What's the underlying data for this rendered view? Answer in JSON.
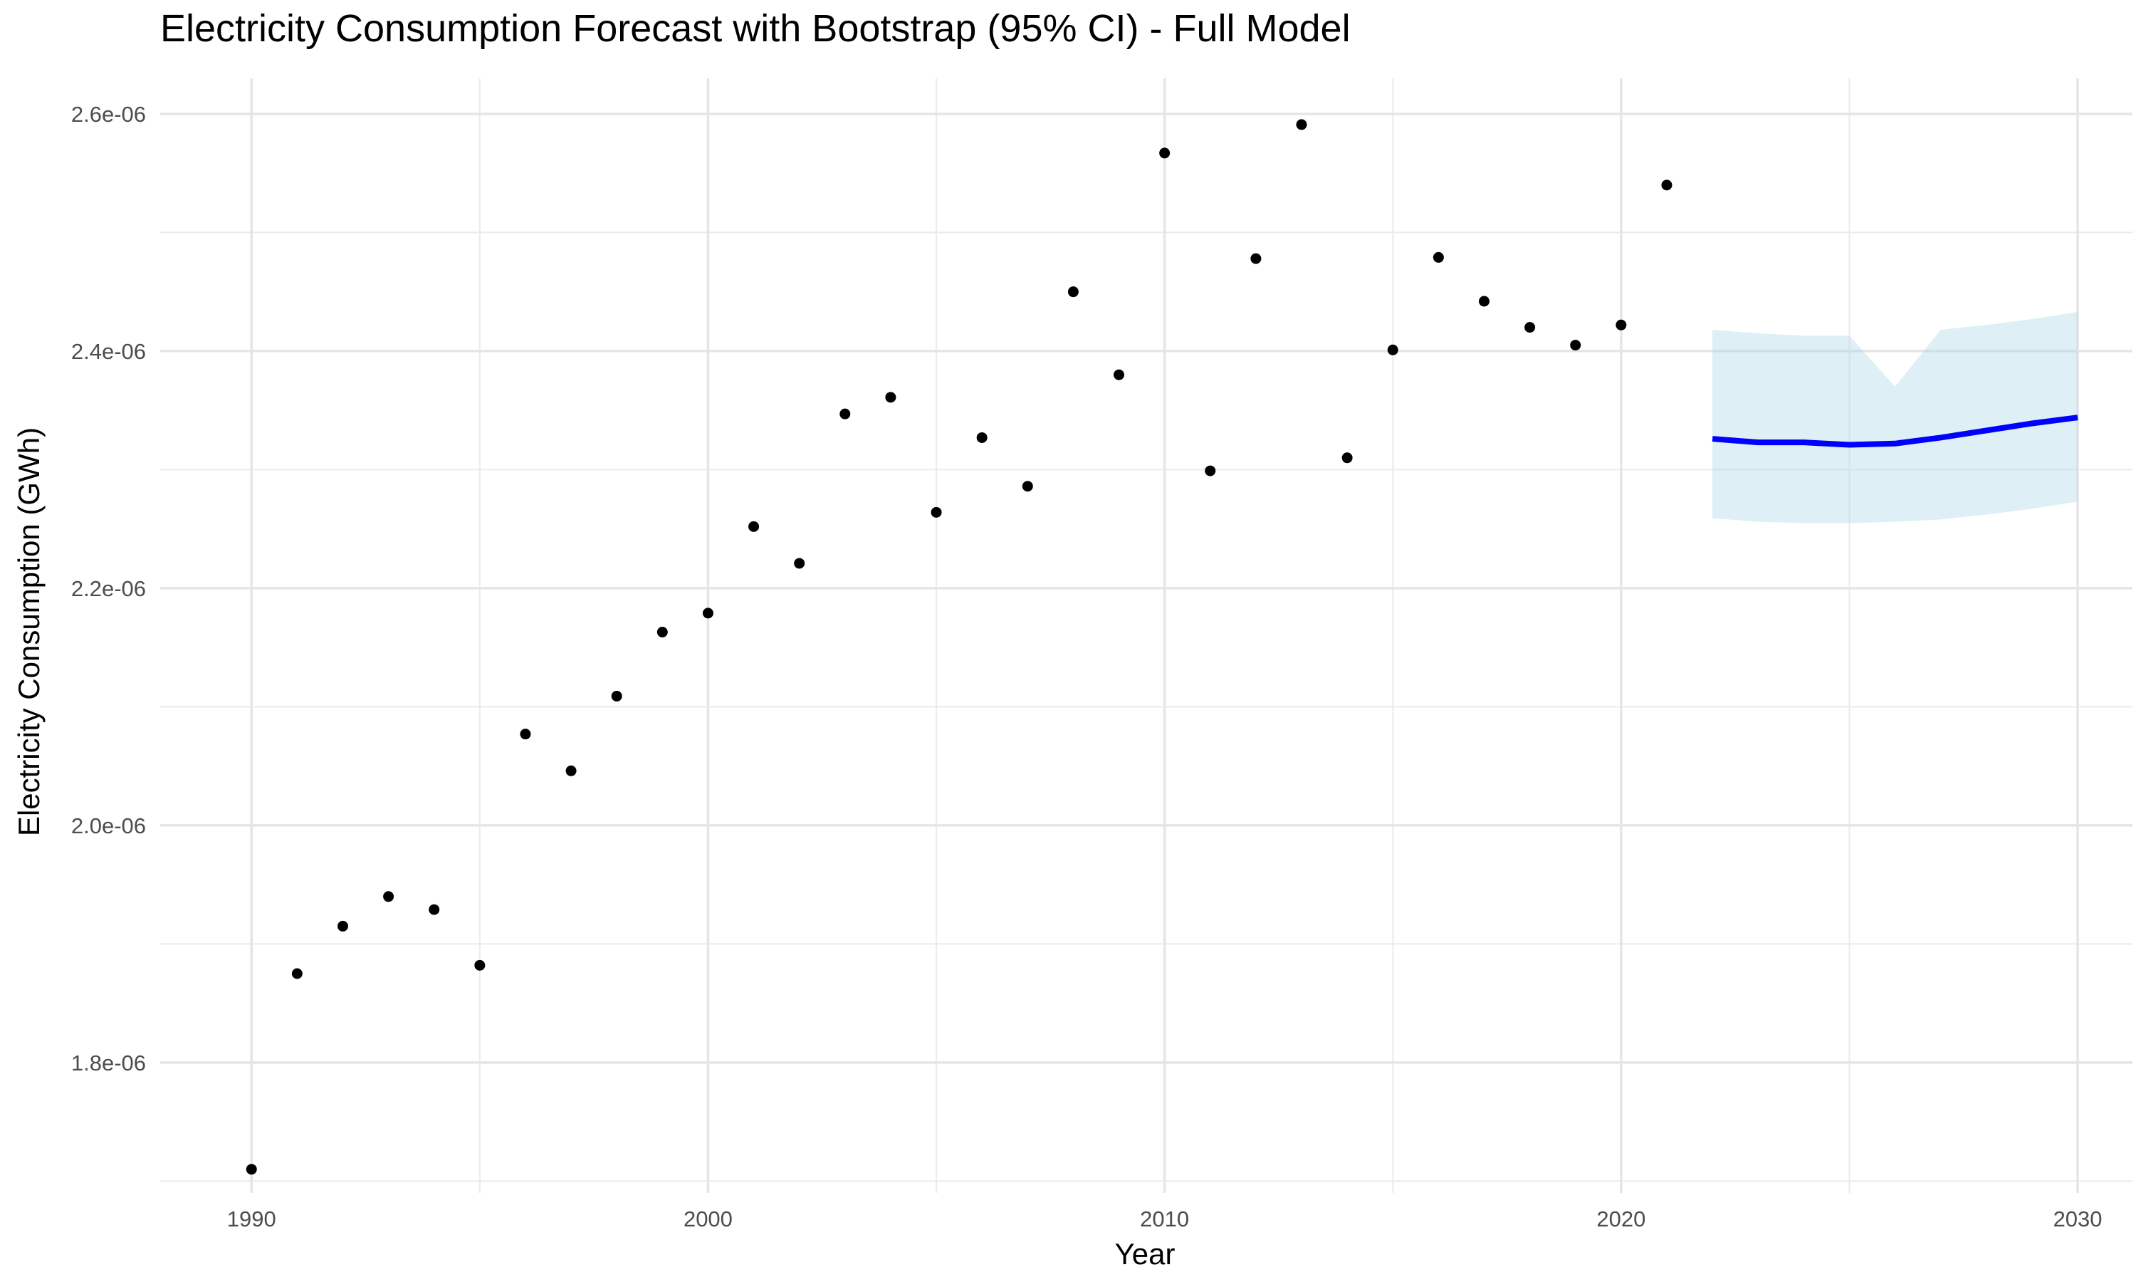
{
  "chart_data": {
    "type": "scatter",
    "title": "Electricity Consumption Forecast with Bootstrap (95% CI) - Full Model",
    "xlabel": "Year",
    "ylabel": "Electricity Consumption (GWh)",
    "xlim": [
      1988,
      2031.2
    ],
    "ylim": [
      1.69e-06,
      2.63e-06
    ],
    "x_ticks": [
      1990,
      2000,
      2010,
      2020,
      2030
    ],
    "x_tick_labels": [
      "1990",
      "2000",
      "2010",
      "2020",
      "2030"
    ],
    "x_minor_ticks": [
      1995,
      2005,
      2015,
      2025
    ],
    "y_ticks": [
      1.8e-06,
      2e-06,
      2.2e-06,
      2.4e-06,
      2.6e-06
    ],
    "y_tick_labels": [
      "1.8e-06",
      "2.0e-06",
      "2.2e-06",
      "2.4e-06",
      "2.6e-06"
    ],
    "y_minor_ticks": [
      1.7e-06,
      1.9e-06,
      2.1e-06,
      2.3e-06,
      2.5e-06
    ],
    "grid": true,
    "series": [
      {
        "type": "scatter",
        "color": "#000000",
        "points": [
          [
            1990,
            1.71e-06
          ],
          [
            1991,
            1.875e-06
          ],
          [
            1992,
            1.915e-06
          ],
          [
            1993,
            1.94e-06
          ],
          [
            1994,
            1.929e-06
          ],
          [
            1995,
            1.882e-06
          ],
          [
            1996,
            2.077e-06
          ],
          [
            1997,
            2.046e-06
          ],
          [
            1998,
            2.109e-06
          ],
          [
            1999,
            2.163e-06
          ],
          [
            2000,
            2.179e-06
          ],
          [
            2001,
            2.252e-06
          ],
          [
            2002,
            2.221e-06
          ],
          [
            2003,
            2.347e-06
          ],
          [
            2004,
            2.361e-06
          ],
          [
            2005,
            2.264e-06
          ],
          [
            2006,
            2.327e-06
          ],
          [
            2007,
            2.286e-06
          ],
          [
            2008,
            2.45e-06
          ],
          [
            2009,
            2.38e-06
          ],
          [
            2010,
            2.567e-06
          ],
          [
            2011,
            2.299e-06
          ],
          [
            2012,
            2.478e-06
          ],
          [
            2013,
            2.591e-06
          ],
          [
            2014,
            2.31e-06
          ],
          [
            2015,
            2.401e-06
          ],
          [
            2016,
            2.479e-06
          ],
          [
            2017,
            2.442e-06
          ],
          [
            2018,
            2.42e-06
          ],
          [
            2019,
            2.405e-06
          ],
          [
            2020,
            2.422e-06
          ],
          [
            2021,
            2.54e-06
          ]
        ]
      },
      {
        "type": "line",
        "color": "#0000ff",
        "points": [
          [
            2022,
            2.326e-06
          ],
          [
            2023,
            2.323e-06
          ],
          [
            2024,
            2.323e-06
          ],
          [
            2025,
            2.321e-06
          ],
          [
            2026,
            2.322e-06
          ],
          [
            2027,
            2.327e-06
          ],
          [
            2028,
            2.333e-06
          ],
          [
            2029,
            2.339e-06
          ],
          [
            2030,
            2.344e-06
          ]
        ]
      },
      {
        "type": "area",
        "color": "#add8e6",
        "x": [
          2022,
          2023,
          2024,
          2025,
          2026,
          2027,
          2028,
          2029,
          2030
        ],
        "upper": [
          2.418e-06,
          2.415e-06,
          2.413e-06,
          2.413e-06,
          2.37e-06,
          2.418e-06,
          2.422e-06,
          2.427e-06,
          2.433e-06
        ],
        "lower": [
          2.259e-06,
          2.256e-06,
          2.255e-06,
          2.255e-06,
          2.256e-06,
          2.258e-06,
          2.262e-06,
          2.267e-06,
          2.273e-06
        ]
      }
    ]
  }
}
